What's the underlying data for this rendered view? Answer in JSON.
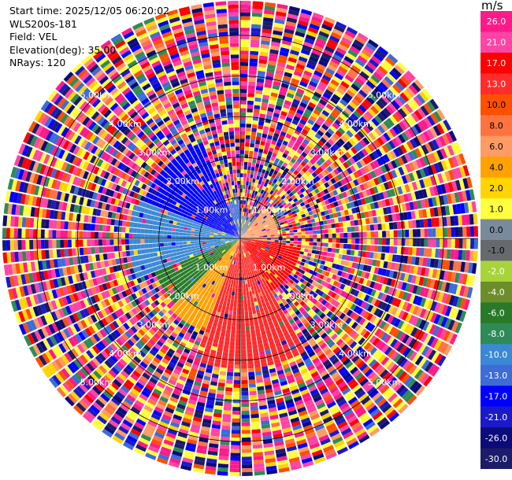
{
  "header": {
    "start_time": "Start time: 2025/12/05 06:20:02",
    "station": "WLS200s-181",
    "field": "Field: VEL",
    "elevation": "Elevation(deg): 35.00",
    "nrays": "NRays: 120"
  },
  "colorbar": {
    "unit": "m/s",
    "ticks": [
      "26.0",
      "21.0",
      "17.0",
      "13.0",
      "10.0",
      "8.0",
      "6.0",
      "4.0",
      "2.0",
      "1.0",
      "0.0",
      "-1.0",
      "-2.0",
      "-4.0",
      "-6.0",
      "-8.0",
      "-10.0",
      "-13.0",
      "-17.0",
      "-21.0",
      "-26.0",
      "-30.0"
    ],
    "colors": [
      "#fe1a8a",
      "#ff44a5",
      "#ff0000",
      "#ff2c2c",
      "#ff4f00",
      "#ff7340",
      "#ff9b63",
      "#ffa100",
      "#ffd400",
      "#fffe3f",
      "#798a9d",
      "#666a6c",
      "#a8d43a",
      "#6b8e2b",
      "#287a28",
      "#2e8b57",
      "#3b89d6",
      "#3d6cd8",
      "#0000ff",
      "#1a1acb",
      "#0b0b7a",
      "#1c1c6a"
    ]
  },
  "chart_data": {
    "type": "polar",
    "title": "",
    "field": "VEL",
    "unit": "m/s",
    "elevation_deg": 35.0,
    "n_rays": 120,
    "range_ring_labels": [
      "1.00km",
      "2.00km",
      "3.00km",
      "4.00km",
      "5.00km"
    ],
    "range_rings_km": [
      1,
      2,
      3,
      4,
      5
    ],
    "max_range_km": 5.85,
    "color_levels": [
      -30,
      -26,
      -21,
      -17,
      -13,
      -10,
      -8,
      -6,
      -4,
      -2,
      -1,
      0,
      1,
      2,
      4,
      6,
      8,
      10,
      13,
      17,
      21,
      26
    ],
    "near_field_pattern": [
      {
        "azimuth_from": 290,
        "azimuth_to": 340,
        "velocity": -17,
        "to_km": 2.6
      },
      {
        "azimuth_from": 340,
        "azimuth_to": 360,
        "velocity": -13,
        "to_km": 1.0
      },
      {
        "azimuth_from": 250,
        "azimuth_to": 290,
        "velocity": -10,
        "to_km": 2.8
      },
      {
        "azimuth_from": 225,
        "azimuth_to": 250,
        "velocity": -6,
        "to_km": 2.3
      },
      {
        "azimuth_from": 200,
        "azimuth_to": 225,
        "velocity": 4,
        "to_km": 2.5
      },
      {
        "azimuth_from": 150,
        "azimuth_to": 200,
        "velocity": 13,
        "to_km": 3.3
      },
      {
        "azimuth_from": 95,
        "azimuth_to": 150,
        "velocity": 17,
        "to_km": 1.6
      },
      {
        "azimuth_from": 40,
        "azimuth_to": 95,
        "velocity": 6,
        "to_km": 1.0
      },
      {
        "azimuth_from": 0,
        "azimuth_to": 40,
        "velocity": 0,
        "to_km": 0.6
      }
    ],
    "far_field": "noise"
  }
}
